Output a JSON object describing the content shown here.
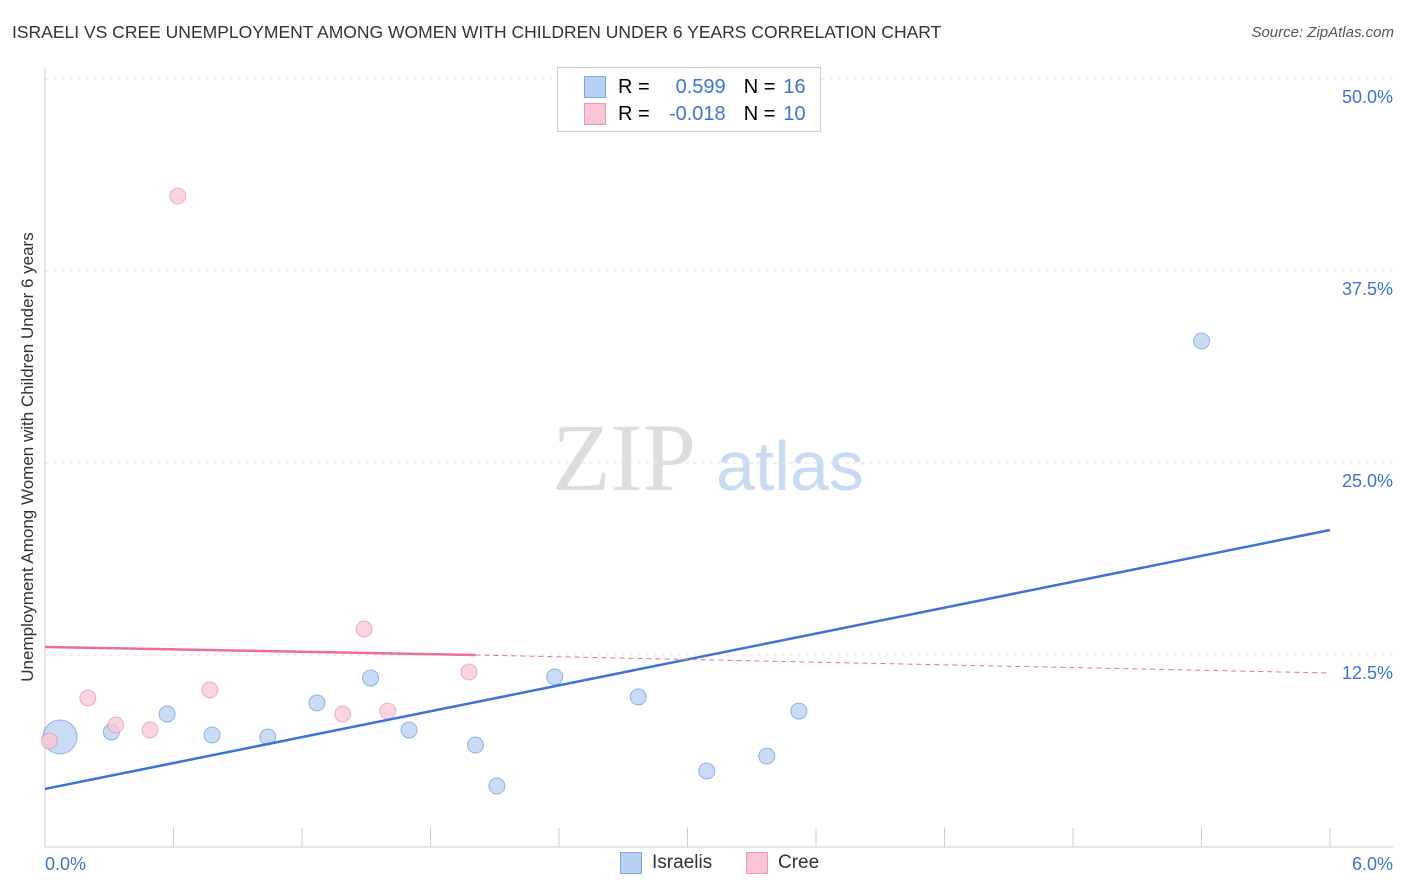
{
  "title": "ISRAELI VS CREE UNEMPLOYMENT AMONG WOMEN WITH CHILDREN UNDER 6 YEARS CORRELATION CHART",
  "source": "Source: ZipAtlas.com",
  "legend": {
    "r_label": "R =",
    "n_label": "N =",
    "israelis": {
      "r": "0.599",
      "n": "16"
    },
    "cree": {
      "r": "-0.018",
      "n": "10"
    }
  },
  "chart_data": {
    "type": "scatter",
    "xlabel": "",
    "ylabel": "Unemployment Among Women with Children Under 6 years",
    "xlim": [
      0,
      6
    ],
    "ylim": [
      0,
      50
    ],
    "x_tick_labels": [
      "0.0%",
      "6.0%"
    ],
    "y_tick_labels": [
      "12.5%",
      "25.0%",
      "37.5%",
      "50.0%"
    ],
    "y_ticks": [
      12.5,
      25,
      37.5,
      50
    ],
    "series": [
      {
        "name": "Israelis",
        "color": "#3b74d4",
        "fill": "#b8d0f2",
        "points": [
          [
            0.07,
            7.16
          ],
          [
            0.31,
            7.49
          ],
          [
            0.57,
            8.66
          ],
          [
            0.78,
            7.29
          ],
          [
            1.04,
            7.16
          ],
          [
            1.27,
            9.38
          ],
          [
            1.52,
            11.0
          ],
          [
            1.7,
            7.62
          ],
          [
            2.01,
            6.64
          ],
          [
            2.11,
            3.97
          ],
          [
            2.38,
            11.07
          ],
          [
            2.77,
            9.77
          ],
          [
            3.09,
            4.95
          ],
          [
            3.37,
            5.92
          ],
          [
            3.52,
            8.85
          ],
          [
            5.4,
            32.94
          ]
        ],
        "trend": [
          [
            0,
            3.78
          ],
          [
            6,
            20.64
          ]
        ]
      },
      {
        "name": "Cree",
        "color": "#e8709a",
        "fill": "#f8c6d6",
        "points": [
          [
            0.02,
            6.9
          ],
          [
            0.2,
            9.7
          ],
          [
            0.33,
            7.94
          ],
          [
            0.49,
            7.62
          ],
          [
            0.62,
            42.38
          ],
          [
            0.77,
            10.22
          ],
          [
            1.39,
            8.66
          ],
          [
            1.49,
            14.19
          ],
          [
            1.6,
            8.85
          ],
          [
            1.98,
            11.39
          ]
        ],
        "trend": [
          [
            0,
            13.02
          ],
          [
            2.01,
            12.5
          ]
        ],
        "trend_dashed": [
          [
            2.01,
            12.5
          ],
          [
            6,
            11.33
          ]
        ]
      }
    ],
    "watermark": "ZIPatlas"
  }
}
